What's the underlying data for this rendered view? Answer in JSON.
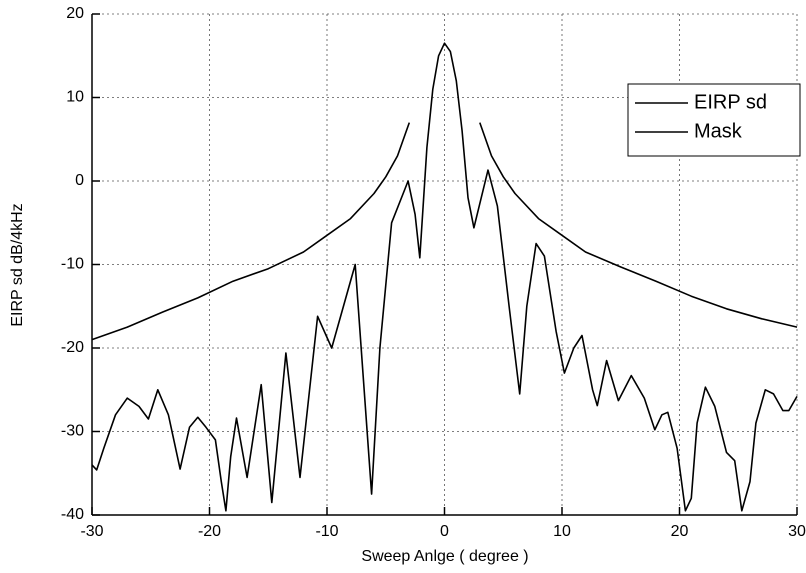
{
  "chart_data": {
    "type": "line",
    "xlabel": "Sweep Anlge ( degree )",
    "ylabel": "EIRP sd dB/4kHz",
    "xlim": [
      -30,
      30
    ],
    "xticks": [
      -30,
      -20,
      -10,
      0,
      10,
      20,
      30
    ],
    "ylim": [
      -40,
      20
    ],
    "yticks": [
      -40,
      -30,
      -20,
      -10,
      0,
      10,
      20
    ],
    "grid": true,
    "legend": "upper right",
    "series": [
      {
        "name": "EIRP sd",
        "color": "#000000",
        "x": [
          -30,
          -29.6,
          -29,
          -28,
          -27,
          -26,
          -25.2,
          -24.4,
          -23.5,
          -22.5,
          -21.7,
          -21,
          -20.3,
          -19.5,
          -19,
          -18.6,
          -18.2,
          -17.7,
          -16.8,
          -15.6,
          -14.7,
          -13.5,
          -12.3,
          -10.8,
          -9.6,
          -7.6,
          -6.2,
          -5.5,
          -4.5,
          -3.1,
          -2.5,
          -2.1,
          -1.5,
          -1,
          -0.5,
          0,
          0.5,
          1,
          1.5,
          2,
          2.5,
          3.7,
          4.5,
          5.5,
          6.4,
          7,
          7.8,
          8.5,
          9.5,
          10.2,
          11,
          11.7,
          12.6,
          13,
          13.8,
          14.8,
          15.9,
          17,
          17.9,
          18.5,
          19,
          19.8,
          20.5,
          21,
          21.5,
          22.2,
          23,
          24,
          24.7,
          25.3,
          26,
          26.5,
          27.3,
          28,
          28.8,
          29.3,
          30
        ],
        "values": [
          -34,
          -34.6,
          -32,
          -28,
          -26,
          -27,
          -28.5,
          -25,
          -28,
          -34.5,
          -29.5,
          -28.3,
          -29.5,
          -31,
          -36,
          -39.5,
          -33,
          -28.4,
          -35.5,
          -24.4,
          -38.5,
          -20.6,
          -35.5,
          -16.2,
          -20,
          -10,
          -37.5,
          -20,
          -5,
          0,
          -4,
          -9.2,
          4,
          11,
          15,
          16.5,
          15.5,
          12,
          6,
          -2,
          -5.6,
          1.3,
          -3,
          -15,
          -25.5,
          -15,
          -7.5,
          -9,
          -18,
          -23,
          -20,
          -18.5,
          -25,
          -26.9,
          -21.5,
          -26.3,
          -23.3,
          -26,
          -29.8,
          -28,
          -27.7,
          -32,
          -39.5,
          -38,
          -29,
          -24.7,
          -27,
          -32.5,
          -33.5,
          -39.5,
          -36,
          -29,
          -25,
          -25.5,
          -27.5,
          -27.5,
          -25.8
        ]
      },
      {
        "name": "Mask",
        "color": "#000000",
        "x": [
          -30,
          -27,
          -24,
          -21,
          -18,
          -15,
          -12,
          -10,
          -8,
          -6,
          -5,
          -4,
          -3,
          0,
          3,
          4,
          5,
          6,
          8,
          10,
          12,
          15,
          18,
          21,
          24,
          27,
          30
        ],
        "values": [
          -19,
          -17.5,
          -15.7,
          -14,
          -12,
          -10.5,
          -8.5,
          -6.5,
          -4.5,
          -1.5,
          0.5,
          3,
          7,
          null,
          7,
          3,
          0.5,
          -1.5,
          -4.5,
          -6.5,
          -8.5,
          -10.3,
          -12,
          -13.8,
          -15.3,
          -16.5,
          -17.5
        ]
      }
    ]
  }
}
